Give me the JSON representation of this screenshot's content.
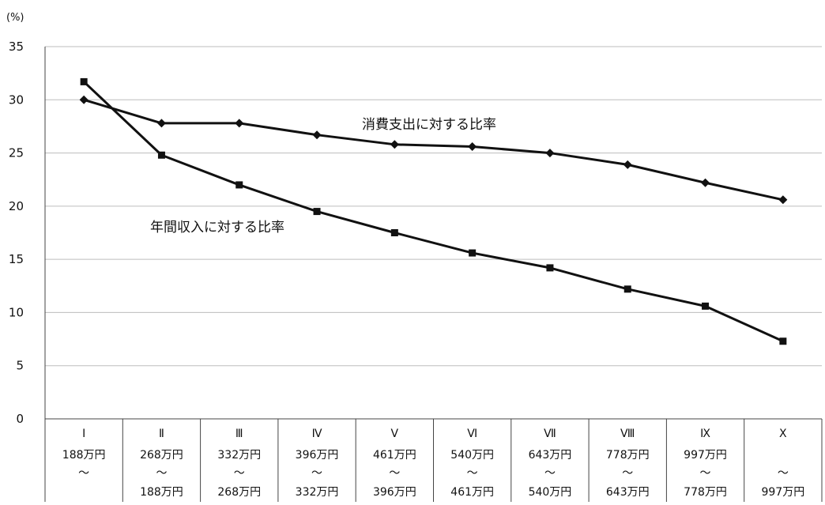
{
  "chart_data": {
    "type": "line",
    "y_unit": "(%)",
    "ylim": [
      0,
      35
    ],
    "y_ticks": [
      "0",
      "5",
      "10",
      "15",
      "20",
      "25",
      "30",
      "35"
    ],
    "grid": true,
    "categories": [
      {
        "numeral": "Ⅰ",
        "line1": "188万円",
        "line2": "～",
        "line3": ""
      },
      {
        "numeral": "Ⅱ",
        "line1": "268万円",
        "line2": "～",
        "line3": "188万円"
      },
      {
        "numeral": "Ⅲ",
        "line1": "332万円",
        "line2": "～",
        "line3": "268万円"
      },
      {
        "numeral": "Ⅳ",
        "line1": "396万円",
        "line2": "～",
        "line3": "332万円"
      },
      {
        "numeral": "Ⅴ",
        "line1": "461万円",
        "line2": "～",
        "line3": "396万円"
      },
      {
        "numeral": "Ⅵ",
        "line1": "540万円",
        "line2": "～",
        "line3": "461万円"
      },
      {
        "numeral": "Ⅶ",
        "line1": "643万円",
        "line2": "～",
        "line3": "540万円"
      },
      {
        "numeral": "Ⅷ",
        "line1": "778万円",
        "line2": "～",
        "line3": "643万円"
      },
      {
        "numeral": "Ⅸ",
        "line1": "997万円",
        "line2": "～",
        "line3": "778万円"
      },
      {
        "numeral": "Ⅹ",
        "line1": "",
        "line2": "～",
        "line3": "997万円"
      }
    ],
    "series": [
      {
        "name": "消費支出に対する比率",
        "marker": "diamond",
        "values": [
          30.0,
          27.8,
          27.8,
          26.7,
          25.8,
          25.6,
          25.0,
          23.9,
          22.2,
          20.6
        ]
      },
      {
        "name": "年間収入に対する比率",
        "marker": "square",
        "values": [
          31.7,
          24.8,
          22.0,
          19.5,
          17.5,
          15.6,
          14.2,
          12.2,
          10.6,
          7.3
        ]
      }
    ],
    "colors": {
      "line": "#111111",
      "grid": "#bdbdbd",
      "axis": "#444444"
    }
  }
}
